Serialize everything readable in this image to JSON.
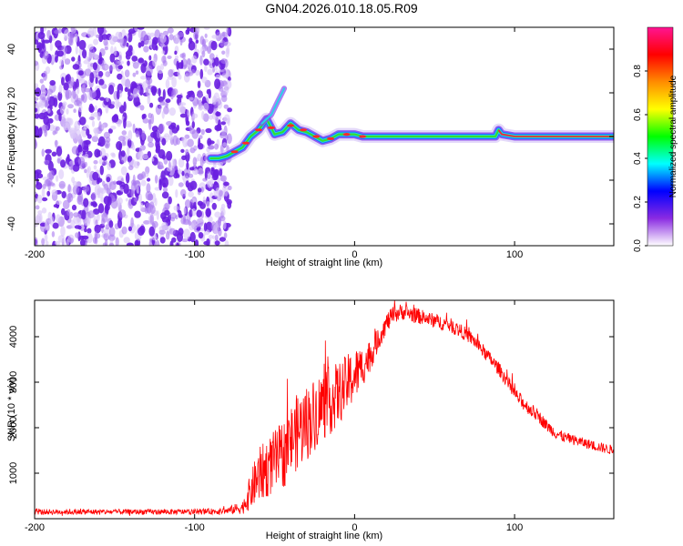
{
  "title": "GN04.2026.010.18.05.R09",
  "chart_data": [
    {
      "type": "heatmap",
      "title": "GN04.2026.010.18.05.R09",
      "xlabel": "Height of straight line (km)",
      "ylabel": "Frequency (Hz)",
      "xlim": [
        -200,
        162
      ],
      "ylim": [
        -50,
        50
      ],
      "x_ticks": [
        -200,
        -100,
        0,
        100
      ],
      "y_ticks": [
        -40,
        -20,
        0,
        20,
        40
      ],
      "colorbar": {
        "label": "Normalized spectral amplitude",
        "range": [
          0,
          1
        ],
        "ticks": [
          "0.0",
          "0.2",
          "0.4",
          "0.6",
          "0.8"
        ],
        "colormap": [
          "#ffffff",
          "#8a2be2",
          "#0000ff",
          "#00ffff",
          "#00ff00",
          "#ffff00",
          "#ff8c00",
          "#ff0000",
          "#ff1493"
        ]
      },
      "noise_region_x": [
        -200,
        -78
      ],
      "signal_track": {
        "x": [
          -90,
          -85,
          -80,
          -75,
          -70,
          -65,
          -60,
          -55,
          -50,
          -45,
          -40,
          -35,
          -30,
          -25,
          -20,
          -15,
          -10,
          -5,
          0,
          5,
          10,
          20,
          40,
          60,
          80,
          88,
          90,
          92,
          100,
          120,
          140,
          162
        ],
        "y": [
          -10,
          -10,
          -9,
          -7,
          -5,
          0,
          3,
          8,
          1,
          2,
          6,
          3,
          2,
          0,
          -2,
          -1,
          1,
          1,
          1,
          0,
          0,
          0,
          0,
          0,
          0,
          0,
          3,
          1,
          0,
          0,
          0,
          0
        ]
      },
      "branch": {
        "x": [
          -58,
          -52,
          -48,
          -44
        ],
        "y": [
          6,
          10,
          16,
          22
        ]
      }
    },
    {
      "type": "line",
      "xlabel": "Height of straight line (km)",
      "ylabel": "SNR (10 * v/v)",
      "xlim": [
        -200,
        162
      ],
      "ylim": [
        0,
        4800
      ],
      "x_ticks": [
        -200,
        -100,
        0,
        100
      ],
      "y_ticks": [
        1000,
        2000,
        3000,
        4000
      ],
      "series": [
        {
          "color": "#ff0000",
          "x": [
            -200,
            -180,
            -160,
            -140,
            -120,
            -100,
            -80,
            -70,
            -65,
            -60,
            -55,
            -50,
            -45,
            -40,
            -35,
            -30,
            -25,
            -20,
            -15,
            -10,
            -5,
            0,
            5,
            10,
            15,
            20,
            25,
            30,
            35,
            40,
            45,
            50,
            55,
            60,
            65,
            70,
            75,
            80,
            85,
            90,
            95,
            100,
            105,
            110,
            115,
            120,
            125,
            130,
            140,
            150,
            162
          ],
          "y": [
            150,
            150,
            150,
            150,
            150,
            150,
            170,
            250,
            600,
            950,
            1100,
            1250,
            1400,
            1700,
            1950,
            2100,
            2300,
            2500,
            2600,
            2750,
            2950,
            3150,
            3350,
            3600,
            3950,
            4300,
            4500,
            4550,
            4500,
            4450,
            4400,
            4350,
            4300,
            4250,
            4150,
            4050,
            3900,
            3700,
            3500,
            3300,
            3050,
            2750,
            2550,
            2400,
            2250,
            2050,
            1900,
            1800,
            1700,
            1600,
            1500
          ],
          "noise_amplitude": [
            60,
            60,
            60,
            60,
            60,
            60,
            70,
            150,
            400,
            600,
            650,
            700,
            750,
            800,
            850,
            850,
            800,
            800,
            750,
            700,
            650,
            600,
            450,
            350,
            250,
            220,
            200,
            180,
            180,
            170,
            160,
            160,
            160,
            160,
            160,
            150,
            150,
            150,
            150,
            150,
            150,
            150,
            150,
            150,
            140,
            130,
            130,
            120,
            110,
            110,
            110
          ]
        }
      ]
    }
  ]
}
